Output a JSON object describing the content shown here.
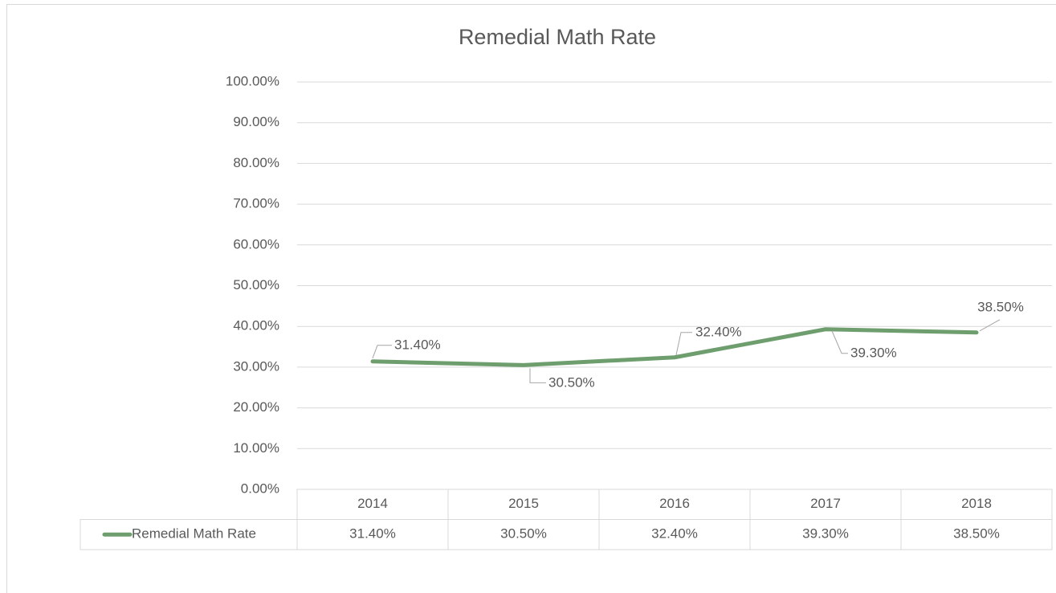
{
  "chart_data": {
    "type": "line",
    "title": "Remedial Math Rate",
    "categories": [
      "2014",
      "2015",
      "2016",
      "2017",
      "2018"
    ],
    "series": [
      {
        "name": "Remedial Math Rate",
        "color": "#6e9e6e",
        "values": [
          31.4,
          30.5,
          32.4,
          39.3,
          38.5
        ],
        "value_labels": [
          "31.40%",
          "30.50%",
          "32.40%",
          "39.30%",
          "38.50%"
        ]
      }
    ],
    "ylim": [
      0,
      100
    ],
    "yticks": [
      {
        "value": 0,
        "label": "0.00%"
      },
      {
        "value": 10,
        "label": "10.00%"
      },
      {
        "value": 20,
        "label": "20.00%"
      },
      {
        "value": 30,
        "label": "30.00%"
      },
      {
        "value": 40,
        "label": "40.00%"
      },
      {
        "value": 50,
        "label": "50.00%"
      },
      {
        "value": 60,
        "label": "60.00%"
      },
      {
        "value": 70,
        "label": "70.00%"
      },
      {
        "value": 80,
        "label": "80.00%"
      },
      {
        "value": 90,
        "label": "90.00%"
      },
      {
        "value": 100,
        "label": "100.00%"
      }
    ],
    "grid": true
  }
}
